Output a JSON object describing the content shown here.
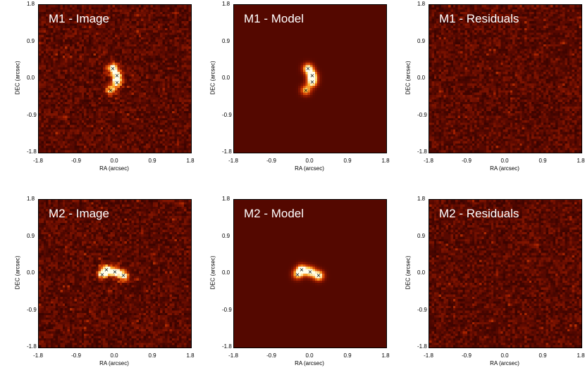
{
  "figure_title": "",
  "chart_data": [
    {
      "type": "heatmap",
      "title": "M1 - Image",
      "xlabel": "RA (arcsec)",
      "ylabel": "DEC (arcsec)",
      "xlim": [
        -1.8,
        1.8
      ],
      "ylim": [
        -1.8,
        1.8
      ],
      "xticks": [
        "-1.8",
        "-0.9",
        "0.0",
        "0.9",
        "1.8"
      ],
      "yticks": [
        "-1.8",
        "-0.9",
        "0.0",
        "0.9",
        "1.8"
      ],
      "colormap": "red-hot",
      "noise": true,
      "sources": [
        {
          "x": -0.05,
          "y": 0.25,
          "peak": 1.0
        },
        {
          "x": 0.05,
          "y": 0.08,
          "peak": 0.9
        },
        {
          "x": 0.05,
          "y": -0.1,
          "peak": 0.85
        },
        {
          "x": -0.1,
          "y": -0.28,
          "peak": 0.7
        }
      ],
      "markers": [
        {
          "x": -0.05,
          "y": 0.25
        },
        {
          "x": 0.05,
          "y": 0.08
        },
        {
          "x": 0.05,
          "y": -0.1
        },
        {
          "x": -0.1,
          "y": -0.28
        }
      ]
    },
    {
      "type": "heatmap",
      "title": "M1 - Model",
      "xlabel": "RA (arcsec)",
      "ylabel": "DEC (arcsec)",
      "xlim": [
        -1.8,
        1.8
      ],
      "ylim": [
        -1.8,
        1.8
      ],
      "xticks": [
        "-1.8",
        "-0.9",
        "0.0",
        "0.9",
        "1.8"
      ],
      "yticks": [
        "-1.8",
        "-0.9",
        "0.0",
        "0.9",
        "1.8"
      ],
      "colormap": "red-hot",
      "noise": false,
      "sources": [
        {
          "x": -0.05,
          "y": 0.25,
          "peak": 1.0
        },
        {
          "x": 0.05,
          "y": 0.08,
          "peak": 0.95
        },
        {
          "x": 0.05,
          "y": -0.08,
          "peak": 0.9
        },
        {
          "x": -0.1,
          "y": -0.28,
          "peak": 0.75
        }
      ],
      "markers": [
        {
          "x": -0.05,
          "y": 0.25
        },
        {
          "x": 0.05,
          "y": 0.08
        },
        {
          "x": 0.05,
          "y": -0.08
        },
        {
          "x": -0.1,
          "y": -0.28
        }
      ]
    },
    {
      "type": "heatmap",
      "title": "M1 - Residuals",
      "xlabel": "RA (arcsec)",
      "ylabel": "DEC (arcsec)",
      "xlim": [
        -1.8,
        1.8
      ],
      "ylim": [
        -1.8,
        1.8
      ],
      "xticks": [
        "-1.8",
        "-0.9",
        "0.0",
        "0.9",
        "1.8"
      ],
      "yticks": [
        "-1.8",
        "-0.9",
        "0.0",
        "0.9",
        "1.8"
      ],
      "colormap": "red-hot",
      "noise": true,
      "sources": [],
      "markers": []
    },
    {
      "type": "heatmap",
      "title": "M2 - Image",
      "xlabel": "RA (arcsec)",
      "ylabel": "DEC (arcsec)",
      "xlim": [
        -1.8,
        1.8
      ],
      "ylim": [
        -1.8,
        1.8
      ],
      "xticks": [
        "-1.8",
        "-0.9",
        "0.0",
        "0.9",
        "1.8"
      ],
      "yticks": [
        "-1.8",
        "-0.9",
        "0.0",
        "0.9",
        "1.8"
      ],
      "colormap": "red-hot",
      "noise": true,
      "sources": [
        {
          "x": -0.3,
          "y": -0.02,
          "peak": 0.7
        },
        {
          "x": -0.2,
          "y": 0.1,
          "peak": 0.9
        },
        {
          "x": 0.0,
          "y": 0.05,
          "peak": 0.95
        },
        {
          "x": 0.2,
          "y": -0.05,
          "peak": 1.0
        }
      ],
      "markers": [
        {
          "x": -0.3,
          "y": -0.02
        },
        {
          "x": -0.2,
          "y": 0.1
        },
        {
          "x": 0.0,
          "y": 0.05
        },
        {
          "x": 0.2,
          "y": -0.05
        }
      ]
    },
    {
      "type": "heatmap",
      "title": "M2 - Model",
      "xlabel": "RA (arcsec)",
      "ylabel": "DEC (arcsec)",
      "xlim": [
        -1.8,
        1.8
      ],
      "ylim": [
        -1.8,
        1.8
      ],
      "xticks": [
        "-1.8",
        "-0.9",
        "0.0",
        "0.9",
        "1.8"
      ],
      "yticks": [
        "-1.8",
        "-0.9",
        "0.0",
        "0.9",
        "1.8"
      ],
      "colormap": "red-hot",
      "noise": false,
      "sources": [
        {
          "x": -0.3,
          "y": -0.02,
          "peak": 0.75
        },
        {
          "x": -0.2,
          "y": 0.1,
          "peak": 0.95
        },
        {
          "x": 0.0,
          "y": 0.05,
          "peak": 0.95
        },
        {
          "x": 0.2,
          "y": -0.05,
          "peak": 1.0
        }
      ],
      "markers": [
        {
          "x": -0.3,
          "y": -0.02
        },
        {
          "x": -0.2,
          "y": 0.1
        },
        {
          "x": 0.0,
          "y": 0.05
        },
        {
          "x": 0.2,
          "y": -0.05
        }
      ]
    },
    {
      "type": "heatmap",
      "title": "M2 - Residuals",
      "xlabel": "RA (arcsec)",
      "ylabel": "DEC (arcsec)",
      "xlim": [
        -1.8,
        1.8
      ],
      "ylim": [
        -1.8,
        1.8
      ],
      "xticks": [
        "-1.8",
        "-0.9",
        "0.0",
        "0.9",
        "1.8"
      ],
      "yticks": [
        "-1.8",
        "-0.9",
        "0.0",
        "0.9",
        "1.8"
      ],
      "colormap": "red-hot",
      "noise": true,
      "sources": [],
      "markers": []
    }
  ]
}
